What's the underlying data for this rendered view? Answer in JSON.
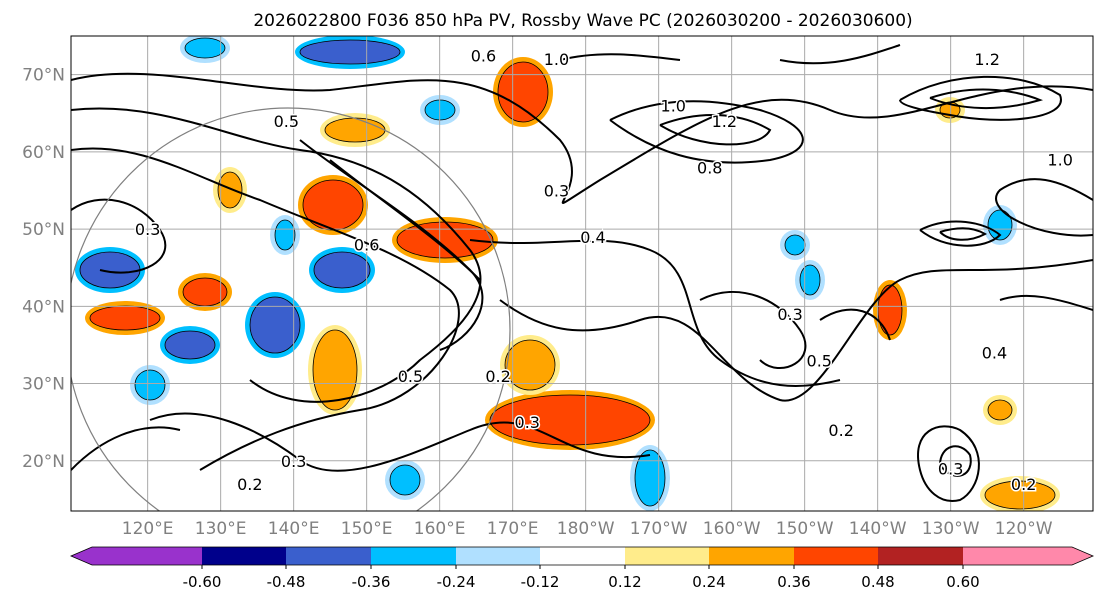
{
  "chart_data": {
    "type": "map-contour",
    "title": "2026022800 F036 850 hPa PV, Rossby Wave PC (2026030200 - 2026030600)",
    "lat_ticks": [
      "70°N",
      "60°N",
      "50°N",
      "40°N",
      "30°N",
      "20°N"
    ],
    "lat_values": [
      70,
      60,
      50,
      40,
      30,
      20
    ],
    "lon_ticks": [
      "120°E",
      "130°E",
      "140°E",
      "150°E",
      "160°E",
      "170°E",
      "180°W",
      "170°W",
      "160°W",
      "150°W",
      "140°W",
      "130°W",
      "120°W"
    ],
    "lon_values": [
      120,
      130,
      140,
      150,
      160,
      170,
      180,
      190,
      200,
      210,
      220,
      230,
      240
    ],
    "lat_range": [
      13.5,
      75
    ],
    "lon_range": [
      109.5,
      249.5
    ],
    "colorbar": {
      "levels": [
        "-0.60",
        "-0.48",
        "-0.36",
        "-0.24",
        "-0.12",
        "0.12",
        "0.24",
        "0.36",
        "0.48",
        "0.60"
      ],
      "colors": [
        "#9932cc",
        "#00008b",
        "#3a5fcd",
        "#00bfff",
        "#b0e0ff",
        "#ffffff",
        "#ffec8b",
        "#ffa500",
        "#ff4500",
        "#b22222",
        "#ff88aa"
      ],
      "extend": "both"
    },
    "contour_labels": [
      {
        "text": "0.6",
        "lon": 166,
        "lat": 72.5
      },
      {
        "text": "1.0",
        "lon": 176,
        "lat": 72
      },
      {
        "text": "1.2",
        "lon": 235,
        "lat": 72
      },
      {
        "text": "1.0",
        "lon": 192,
        "lat": 66
      },
      {
        "text": "1.2",
        "lon": 199,
        "lat": 64
      },
      {
        "text": "0.8",
        "lon": 197,
        "lat": 58
      },
      {
        "text": "1.0",
        "lon": 245,
        "lat": 59
      },
      {
        "text": "0.5",
        "lon": 139,
        "lat": 64
      },
      {
        "text": "0.3",
        "lon": 176,
        "lat": 55
      },
      {
        "text": "0.4",
        "lon": 181,
        "lat": 49
      },
      {
        "text": "0.6",
        "lon": 150,
        "lat": 48
      },
      {
        "text": "0.5",
        "lon": 156,
        "lat": 31
      },
      {
        "text": "0.2",
        "lon": 168,
        "lat": 31
      },
      {
        "text": "0.3",
        "lon": 172,
        "lat": 25
      },
      {
        "text": "0.3",
        "lon": 208,
        "lat": 39
      },
      {
        "text": "0.5",
        "lon": 212,
        "lat": 33
      },
      {
        "text": "0.2",
        "lon": 215,
        "lat": 24
      },
      {
        "text": "0.4",
        "lon": 236,
        "lat": 34
      },
      {
        "text": "0.3",
        "lon": 120,
        "lat": 50
      },
      {
        "text": "0.2",
        "lon": 134,
        "lat": 17
      },
      {
        "text": "0.3",
        "lon": 140,
        "lat": 20
      },
      {
        "text": "0.2",
        "lon": 240,
        "lat": 17
      },
      {
        "text": "0.3",
        "lon": 230,
        "lat": 19
      }
    ]
  }
}
